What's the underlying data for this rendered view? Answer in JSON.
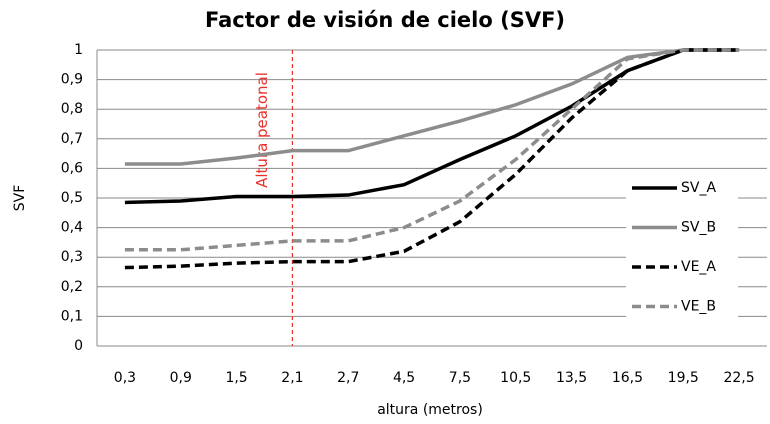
{
  "chart_data": {
    "type": "line",
    "title": "Factor de visión de cielo (SVF)",
    "x_label": "altura (metros)",
    "y_label": "SVF",
    "categories": [
      "0,3",
      "0,9",
      "1,5",
      "2,1",
      "2,7",
      "4,5",
      "7,5",
      "10,5",
      "13,5",
      "16,5",
      "19,5",
      "22,5"
    ],
    "series": [
      {
        "name": "SV_A",
        "color": "#000000",
        "dash": "solid",
        "values": [
          0.485,
          0.49,
          0.505,
          0.505,
          0.51,
          0.545,
          0.63,
          0.71,
          0.81,
          0.93,
          1,
          1
        ]
      },
      {
        "name": "SV_B",
        "color": "#8c8c8c",
        "dash": "solid",
        "values": [
          0.615,
          0.615,
          0.635,
          0.66,
          0.66,
          0.71,
          0.76,
          0.815,
          0.885,
          0.975,
          1,
          1
        ]
      },
      {
        "name": "VE_A",
        "color": "#000000",
        "dash": "dashed",
        "values": [
          0.265,
          0.27,
          0.28,
          0.285,
          0.285,
          0.32,
          0.42,
          0.58,
          0.77,
          0.93,
          1,
          1
        ]
      },
      {
        "name": "VE_B",
        "color": "#8c8c8c",
        "dash": "dashed",
        "values": [
          0.325,
          0.325,
          0.34,
          0.355,
          0.355,
          0.4,
          0.49,
          0.63,
          0.8,
          0.97,
          1,
          1
        ]
      }
    ],
    "ylim": [
      0,
      1
    ],
    "yticks": [
      0,
      {
        "value": 0.1,
        "label": "0,1"
      },
      {
        "value": 0.2,
        "label": "0,2"
      },
      {
        "value": 0.3,
        "label": "0,3"
      },
      {
        "value": 0.4,
        "label": "0,4"
      },
      {
        "value": 0.5,
        "label": "0,5"
      },
      {
        "value": 0.6,
        "label": "0,6"
      },
      {
        "value": 0.7,
        "label": "0,7"
      },
      {
        "value": 0.8,
        "label": "0,8"
      },
      {
        "value": 0.9,
        "label": "0,9"
      },
      1
    ],
    "grid": true,
    "legend": "right",
    "annotation": {
      "text": "Altura peatonal",
      "x": "2,1",
      "color": "#e8302a"
    }
  }
}
